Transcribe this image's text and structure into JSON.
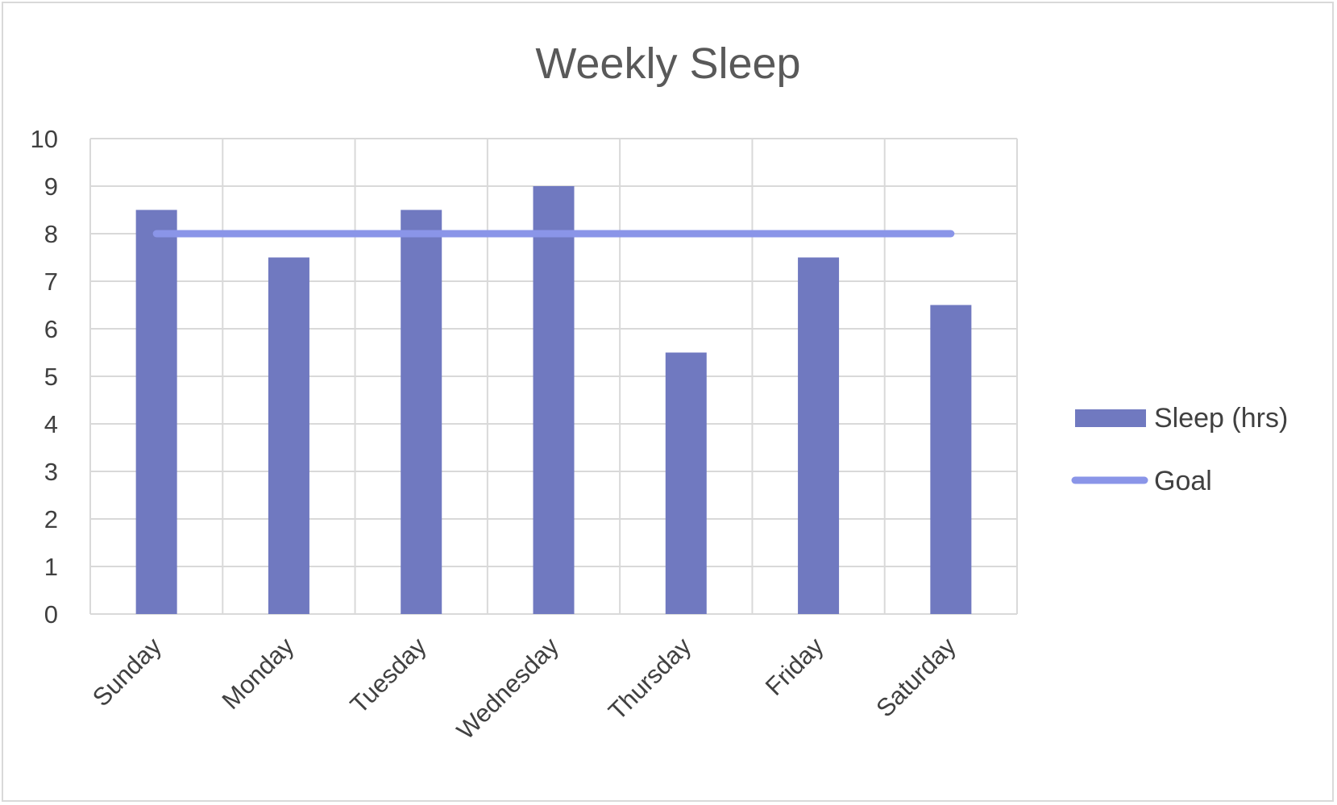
{
  "chart_data": {
    "type": "bar",
    "title": "Weekly Sleep",
    "xlabel": "",
    "ylabel": "",
    "categories": [
      "Sunday",
      "Monday",
      "Tuesday",
      "Wednesday",
      "Thursday",
      "Friday",
      "Saturday"
    ],
    "series": [
      {
        "name": "Sleep (hrs)",
        "type": "bar",
        "values": [
          8.5,
          7.5,
          8.5,
          9,
          5.5,
          7.5,
          6.5
        ]
      },
      {
        "name": "Goal",
        "type": "line",
        "values": [
          8,
          8,
          8,
          8,
          8,
          8,
          8
        ]
      }
    ],
    "ylim": [
      0,
      10
    ],
    "yticks": [
      0,
      1,
      2,
      3,
      4,
      5,
      6,
      7,
      8,
      9,
      10
    ],
    "grid": true,
    "legend_position": "right",
    "colors": {
      "bar": "#7079c0",
      "line": "#8a95e8",
      "grid": "#d9d9d9"
    }
  }
}
